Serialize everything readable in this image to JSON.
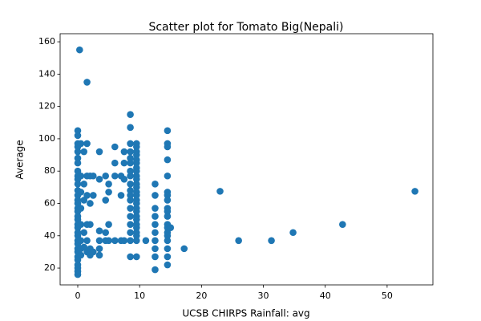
{
  "chart_data": {
    "type": "scatter",
    "title": "Scatter plot for Tomato Big(Nepali)",
    "x_label": "UCSB CHIRPS Rainfall: avg",
    "y_label": "Average",
    "color": "#1f77b4",
    "xlim": [
      -2.85,
      57.4
    ],
    "ylim": [
      9.6,
      165
    ],
    "xticks": [
      0,
      10,
      20,
      30,
      40,
      50
    ],
    "yticks": [
      20,
      40,
      60,
      80,
      100,
      120,
      140,
      160
    ],
    "grid": false,
    "x": [
      0,
      0,
      0,
      0,
      0,
      0,
      0,
      0,
      0,
      0,
      0,
      0,
      0,
      0,
      0,
      0,
      0,
      0,
      0,
      0,
      0,
      0,
      0,
      0,
      0,
      0,
      0,
      0,
      0,
      0,
      0,
      0,
      0,
      0.3,
      0.5,
      0.5,
      0.5,
      0.5,
      0.5,
      0.5,
      0.5,
      0.5,
      1,
      1,
      1,
      1,
      1,
      1.5,
      1.5,
      1.5,
      1.5,
      1.5,
      1.5,
      1.5,
      2,
      2,
      2,
      2,
      2,
      2.5,
      2.5,
      2.5,
      3.5,
      3.5,
      3.5,
      3.5,
      3.5,
      3.5,
      4.5,
      4.5,
      4.5,
      4.5,
      5,
      5,
      5,
      5,
      6,
      6,
      6,
      6,
      7,
      7,
      7,
      7.5,
      7.5,
      7.5,
      7.5,
      8.5,
      8.5,
      8.5,
      8.5,
      8.5,
      8.5,
      8.5,
      8.5,
      8.5,
      8.5,
      8.5,
      8.5,
      8.5,
      8.5,
      8.5,
      8.5,
      8.5,
      8.5,
      9.5,
      9.5,
      9.5,
      9.5,
      9.5,
      9.5,
      9.5,
      9.5,
      9.5,
      9.5,
      9.5,
      9.5,
      9.5,
      9.5,
      9.5,
      9.5,
      9.5,
      9.5,
      9.5,
      9.5,
      9.5,
      9.5,
      9.5,
      9.5,
      9.5,
      9.5,
      11,
      12.5,
      12.5,
      12.5,
      12.5,
      12.5,
      12.5,
      12.5,
      12.5,
      12.5,
      12.5,
      14.5,
      14.5,
      14.5,
      14.5,
      14.5,
      14.5,
      14.5,
      14.5,
      14.5,
      14.5,
      14.5,
      14.5,
      14.5,
      14.5,
      14.5,
      14.5,
      14.5,
      14.5,
      14.5,
      15,
      17.2,
      23,
      26,
      31.3,
      34.8,
      42.8,
      54.5
    ],
    "values": [
      105,
      102,
      97,
      95,
      92,
      88,
      85,
      80,
      77,
      75,
      72,
      68,
      65,
      62,
      60,
      57,
      55,
      52,
      50,
      47,
      45,
      42,
      40,
      37,
      35,
      32,
      30,
      27,
      25,
      22,
      20,
      18,
      16,
      155,
      97,
      77,
      67,
      57,
      47,
      37,
      32,
      28,
      92,
      72,
      62,
      42,
      33,
      135,
      97,
      77,
      65,
      47,
      37,
      30,
      77,
      60,
      47,
      32,
      28,
      77,
      65,
      30,
      92,
      75,
      43,
      37,
      32,
      28,
      77,
      62,
      42,
      37,
      72,
      67,
      47,
      37,
      95,
      85,
      77,
      37,
      77,
      65,
      37,
      92,
      85,
      75,
      37,
      115,
      107,
      97,
      92,
      88,
      85,
      80,
      77,
      72,
      68,
      65,
      62,
      57,
      52,
      47,
      42,
      37,
      27,
      97,
      95,
      92,
      90,
      87,
      85,
      82,
      80,
      77,
      75,
      72,
      70,
      67,
      65,
      62,
      60,
      57,
      55,
      52,
      50,
      47,
      45,
      42,
      40,
      37,
      27,
      37,
      72,
      65,
      57,
      52,
      47,
      42,
      37,
      32,
      27,
      19,
      105,
      97,
      95,
      87,
      77,
      67,
      65,
      62,
      57,
      55,
      52,
      47,
      45,
      42,
      40,
      37,
      32,
      27,
      22,
      45,
      32,
      67.5,
      37,
      37,
      42,
      47,
      67.5
    ]
  }
}
